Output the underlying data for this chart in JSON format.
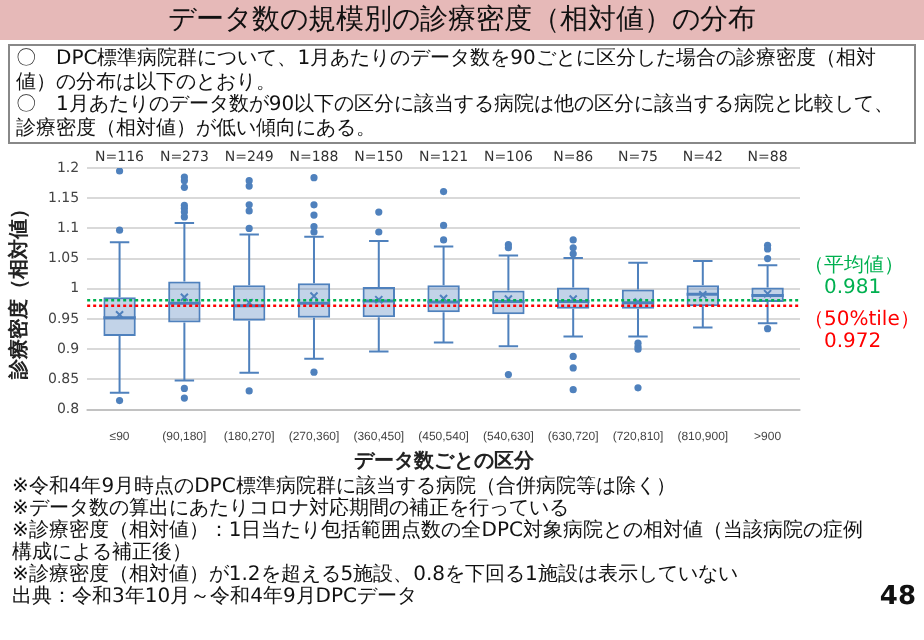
{
  "chart_data": {
    "type": "box",
    "title": "データ数の規模別の診療密度（相対値）の分布",
    "subtitle": "〇　DPC標準病院群について、1月あたりのデータ数を90ごとに区分した場合の診療密度（相対値）の分布は以下のとおり。",
    "xlabel": "データ数ごとの区分",
    "ylabel": "診療密度（相対値）",
    "categories": [
      "≤90",
      "(90,180]",
      "(180,270]",
      "(270,360]",
      "(360,450]",
      "(450,540]",
      "(540,630]",
      "(630,720]",
      "(720,810]",
      "(810,900]",
      ">900"
    ],
    "color": "#4f81bd",
    "boxes": [
      {
        "low": 0.828,
        "q1": 0.922,
        "median": 0.952,
        "q3": 0.986,
        "high": 1.077,
        "mean": 0.957,
        "outliers": [
          1.195,
          1.097,
          0.815
        ]
      },
      {
        "low": 0.848,
        "q1": 0.944,
        "median": 0.976,
        "q3": 1.012,
        "high": 1.109,
        "mean": 0.986,
        "outliers": [
          1.185,
          1.179,
          1.168,
          1.138,
          1.133,
          1.127,
          1.119,
          0.835,
          0.819
        ]
      },
      {
        "low": 0.861,
        "q1": 0.947,
        "median": 0.972,
        "q3": 1.006,
        "high": 1.09,
        "mean": 0.977,
        "outliers": [
          1.179,
          1.17,
          1.139,
          1.129,
          1.1,
          0.831
        ]
      },
      {
        "low": 0.884,
        "q1": 0.952,
        "median": 0.976,
        "q3": 1.009,
        "high": 1.086,
        "mean": 0.988,
        "outliers": [
          1.184,
          1.139,
          1.122,
          1.103,
          1.094,
          0.862
        ]
      },
      {
        "low": 0.896,
        "q1": 0.953,
        "median": 0.98,
        "q3": 1.003,
        "high": 1.079,
        "mean": 0.982,
        "outliers": [
          1.127,
          1.094
        ]
      },
      {
        "low": 0.911,
        "q1": 0.961,
        "median": 0.978,
        "q3": 1.006,
        "high": 1.07,
        "mean": 0.984,
        "outliers": [
          1.161,
          1.105,
          1.081
        ]
      },
      {
        "low": 0.905,
        "q1": 0.958,
        "median": 0.979,
        "q3": 0.997,
        "high": 1.055,
        "mean": 0.983,
        "outliers": [
          1.073,
          1.068,
          0.858
        ]
      },
      {
        "low": 0.921,
        "q1": 0.967,
        "median": 0.979,
        "q3": 1.002,
        "high": 1.051,
        "mean": 0.983,
        "outliers": [
          1.081,
          1.068,
          1.058,
          0.888,
          0.869,
          0.833
        ]
      },
      {
        "low": 0.921,
        "q1": 0.967,
        "median": 0.977,
        "q3": 0.999,
        "high": 1.043,
        "mean": 0.978,
        "outliers": [
          0.91,
          0.904,
          0.9,
          0.836
        ]
      },
      {
        "low": 0.936,
        "q1": 0.971,
        "median": 0.991,
        "q3": 1.006,
        "high": 1.046,
        "mean": 0.99
      },
      {
        "low": 0.943,
        "q1": 0.978,
        "median": 0.989,
        "q3": 1.002,
        "high": 1.039,
        "mean": 0.992,
        "outliers": [
          1.072,
          1.066,
          1.05,
          0.934
        ]
      }
    ],
    "ylim": [
      0.8,
      1.2
    ],
    "yticks": [
      0.8,
      0.85,
      0.9,
      0.95,
      1,
      1.05,
      1.1,
      1.15,
      1.2
    ],
    "grid": "y",
    "legend": false,
    "ref_lines": [
      {
        "axis": "y",
        "value": 0.981,
        "label": "（平均値）0.981",
        "color": "#00b050",
        "line_style": "dotted"
      },
      {
        "axis": "y",
        "value": 0.972,
        "label": "（50%tile）0.972",
        "color": "#ff0000",
        "line_style": "dotted"
      }
    ],
    "annotations": [
      "〇　1月あたりのデータ数が90以下の区分に該当する病院は他の区分に該当する病院と比較して、診療密度（相対値）が低い傾向にある。",
      "N=116",
      "N=273",
      "N=249",
      "N=188",
      "N=150",
      "N=121",
      "N=106",
      "N=86",
      "N=75",
      "N=42",
      "N=88",
      "※令和4年9月時点のDPC標準病院群に該当する病院（合併病院等は除く）",
      "※データ数の算出にあたりコロナ対応期間の補正を行っている",
      "※診療密度（相対値）：1日当たり包括範囲点数の全DPC対象病院との相対値（当該病院の症例構成による補正後）",
      "※診療密度（相対値）が1.2を超える5施設、0.8を下回る1施設は表示していない",
      "出典：令和3年10月～令和4年9月DPCデータ",
      "48"
    ]
  }
}
